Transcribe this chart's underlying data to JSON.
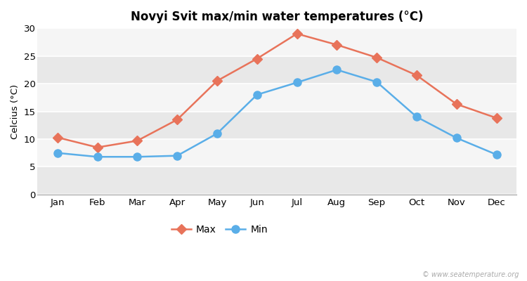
{
  "title": "Novyi Svit max/min water temperatures (°C)",
  "ylabel": "Celcius (°C)",
  "months": [
    "Jan",
    "Feb",
    "Mar",
    "Apr",
    "May",
    "Jun",
    "Jul",
    "Aug",
    "Sep",
    "Oct",
    "Nov",
    "Dec"
  ],
  "max_values": [
    10.3,
    8.5,
    9.7,
    13.5,
    20.5,
    24.5,
    29.0,
    27.0,
    24.7,
    21.5,
    16.3,
    13.8
  ],
  "min_values": [
    7.5,
    6.8,
    6.8,
    7.0,
    11.0,
    18.0,
    20.2,
    22.5,
    20.3,
    14.0,
    10.2,
    7.2
  ],
  "max_color": "#e8735a",
  "min_color": "#5aaee8",
  "fig_bg_color": "#ffffff",
  "plot_bg_color": "#efefef",
  "band_color_light": "#e8e8e8",
  "band_color_lighter": "#f5f5f5",
  "ylim": [
    0,
    30
  ],
  "yticks": [
    0,
    5,
    10,
    15,
    20,
    25,
    30
  ],
  "grid_color": "#ffffff",
  "legend_labels": [
    "Max",
    "Min"
  ],
  "watermark": "© www.seatemperature.org",
  "max_marker": "D",
  "min_marker": "o",
  "linewidth": 1.8,
  "max_markersize": 7,
  "min_markersize": 8
}
